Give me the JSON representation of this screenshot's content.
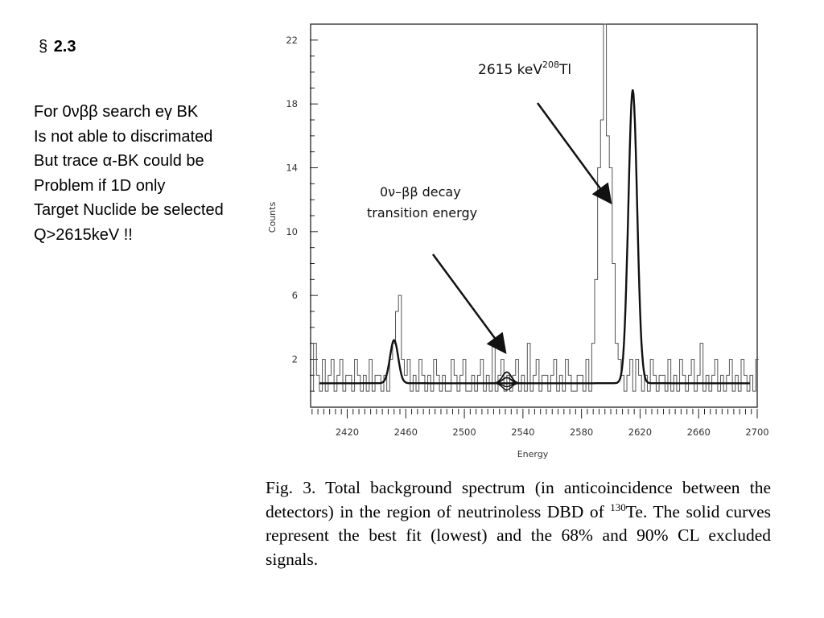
{
  "section": {
    "symbol": "§",
    "number": "2.3"
  },
  "notes": [
    "For 0νββ search eγ BK",
    "Is not able to discrimated",
    "But trace α-BK  could be",
    "Problem if 1D only",
    "Target Nuclide  be selected",
    "Q>2615keV !!"
  ],
  "annotations": {
    "peak_label": "2615 keV",
    "peak_isotope_mass": "208",
    "peak_isotope": "Tl",
    "decay_line1": "0ν–ββ decay",
    "decay_line2": "transition energy"
  },
  "caption": {
    "part1": "Fig. 3.  Total background spectrum (in anticoincidence between the detectors) in the region of neutrinoless DBD of ",
    "mass": "130",
    "part2": "Te. The solid curves represent the best fit (lowest) and the 68% and 90% CL excluded signals."
  },
  "chart_data": {
    "type": "line",
    "xlabel": "Energy",
    "ylabel": "Counts",
    "xlim": [
      2395,
      2700
    ],
    "ylim": [
      -1,
      23
    ],
    "x_ticks": [
      2420,
      2460,
      2500,
      2540,
      2580,
      2620,
      2660,
      2700
    ],
    "y_ticks": [
      2,
      6,
      10,
      14,
      18,
      22
    ],
    "grid": false,
    "legend": "none",
    "bin_width": 2,
    "histogram_counts": [
      0,
      3,
      1,
      0,
      2,
      0,
      1,
      2,
      0,
      1,
      2,
      0,
      1,
      1,
      0,
      2,
      1,
      0,
      1,
      0,
      2,
      0,
      1,
      1,
      0,
      1,
      0,
      2,
      3,
      5,
      6,
      2,
      1,
      2,
      0,
      1,
      0,
      2,
      1,
      0,
      1,
      0,
      2,
      1,
      0,
      1,
      0,
      0,
      2,
      1,
      0,
      1,
      2,
      0,
      0,
      1,
      0,
      1,
      2,
      0,
      1,
      0,
      3,
      0,
      1,
      2,
      0,
      1,
      0,
      1,
      2,
      0,
      1,
      0,
      3,
      0,
      1,
      2,
      0,
      1,
      1,
      0,
      1,
      2,
      0,
      1,
      0,
      2,
      1,
      0,
      0,
      1,
      1,
      0,
      2,
      0,
      3,
      7,
      14,
      17,
      23,
      16,
      14,
      8,
      3,
      2,
      1,
      0,
      1,
      2,
      0,
      2,
      1,
      0,
      1,
      0,
      2,
      1,
      0,
      1,
      1,
      0,
      2,
      0,
      1,
      0,
      2,
      1,
      0,
      1,
      2,
      0,
      1,
      3,
      0,
      1,
      0,
      1,
      2,
      0,
      1,
      0,
      1,
      2,
      0,
      1,
      0,
      2,
      1,
      0,
      1,
      0,
      2
    ],
    "fit_baseline": 0.5,
    "fit_peaks": [
      {
        "center": 2452,
        "amplitude": 2.7,
        "sigma": 2.8
      },
      {
        "center": 2615,
        "amplitude": 18.4,
        "sigma": 3.0
      },
      {
        "center": 2529,
        "amplitude": 0.35,
        "sigma": 3.0
      },
      {
        "center": 2529,
        "amplitude": 0.7,
        "sigma": 3.0
      }
    ]
  }
}
